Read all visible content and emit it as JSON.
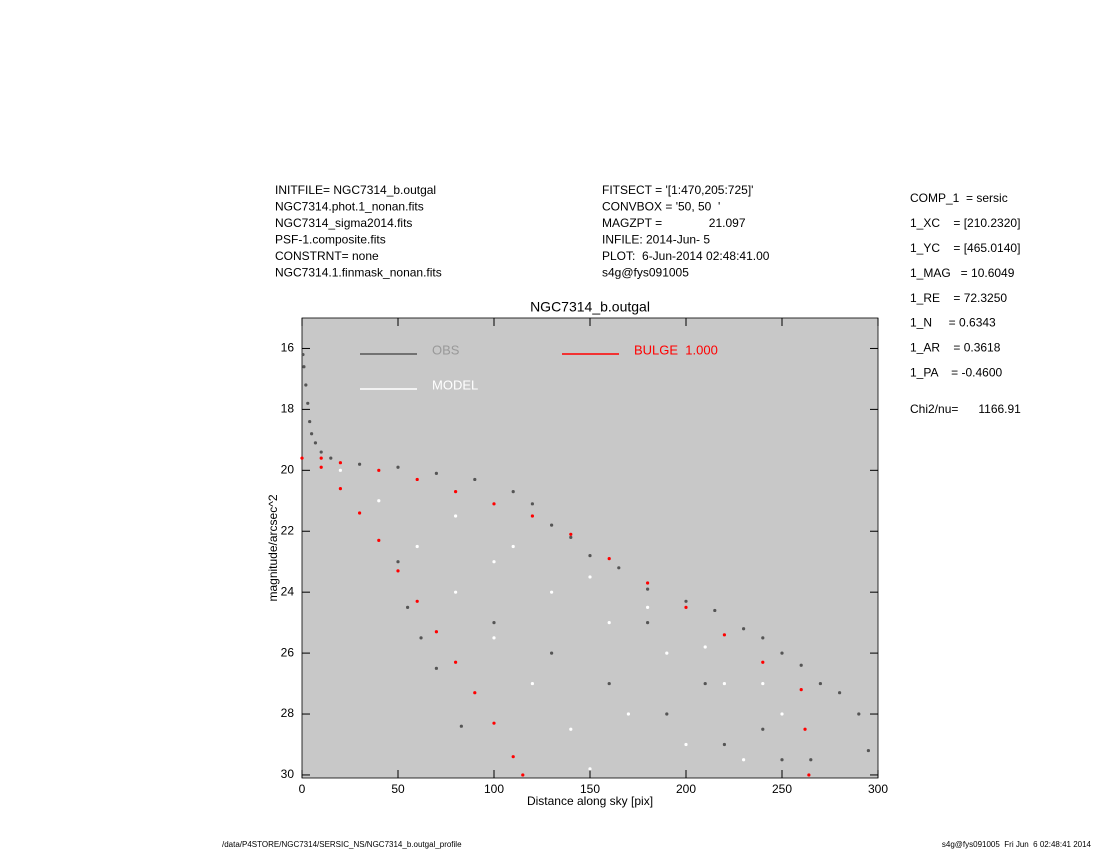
{
  "header": {
    "left": [
      "INITFILE= NGC7314_b.outgal",
      "NGC7314.phot.1_nonan.fits",
      "NGC7314_sigma2014.fits",
      "PSF-1.composite.fits",
      "CONSTRNT= none",
      "NGC7314.1.finmask_nonan.fits"
    ],
    "middle": [
      "FITSECT = '[1:470,205:725]'",
      "CONVBOX = '50, 50  '",
      "MAGZPT =              21.097",
      "INFILE: 2014-Jun- 5",
      "PLOT:  6-Jun-2014 02:48:41.00",
      "s4g@fys091005"
    ]
  },
  "parameters": [
    "COMP_1  = sersic",
    "1_XC    = [210.2320]",
    "1_YC    = [465.0140]",
    "1_MAG   = 10.6049",
    "1_RE    = 72.3250",
    "1_N     = 0.6343",
    "1_AR    = 0.3618",
    "1_PA    = -0.4600"
  ],
  "chi2": "Chi2/nu=      1166.91",
  "footer": {
    "left": "/data/P4STORE/NGC7314/SERSIC_NS/NGC7314_b.outgal_profile",
    "right": "s4g@fys091005  Fri Jun  6 02:48:41 2014"
  },
  "chart_data": {
    "type": "scatter",
    "title": "NGC7314_b.outgal",
    "xlabel": "Distance along sky [pix]",
    "ylabel": "magnitude/arcsec^2",
    "xlim": [
      0,
      300
    ],
    "ylim": [
      30.1,
      15
    ],
    "xticks": [
      0,
      50,
      100,
      150,
      200,
      250,
      300
    ],
    "yticks": [
      16,
      18,
      20,
      22,
      24,
      26,
      28,
      30
    ],
    "background": "#c8c8c8",
    "series": [
      {
        "name": "OBS",
        "color": "#555555",
        "x": [
          0.5,
          1,
          2,
          3,
          4,
          5,
          7,
          10,
          15,
          30,
          50,
          70,
          90,
          110,
          120,
          130,
          140,
          150,
          165,
          180,
          200,
          215,
          230,
          240,
          250,
          260,
          270,
          280,
          290,
          295,
          50,
          55,
          62,
          70,
          83,
          100,
          130,
          160,
          190,
          220,
          250,
          180,
          210,
          240,
          265
        ],
        "y": [
          16.2,
          16.6,
          17.2,
          17.8,
          18.4,
          18.8,
          19.1,
          19.4,
          19.6,
          19.8,
          19.9,
          20.1,
          20.3,
          20.7,
          21.1,
          21.8,
          22.2,
          22.8,
          23.2,
          23.9,
          24.3,
          24.6,
          25.2,
          25.5,
          26.0,
          26.4,
          27.0,
          27.3,
          28.0,
          29.2,
          23.0,
          24.5,
          25.5,
          26.5,
          28.4,
          25.0,
          26.0,
          27.0,
          28.0,
          29.0,
          29.5,
          25.0,
          27.0,
          28.5,
          29.5
        ]
      },
      {
        "name": "MODEL",
        "color": "#ffffff",
        "x": [
          20,
          40,
          60,
          80,
          100,
          120,
          140,
          150,
          100,
          130,
          160,
          190,
          220,
          250,
          170,
          200,
          230,
          80,
          110,
          150,
          180,
          210,
          240
        ],
        "y": [
          20.0,
          21.0,
          22.5,
          24.0,
          25.5,
          27.0,
          28.5,
          29.8,
          23.0,
          24.0,
          25.0,
          26.0,
          27.0,
          28.0,
          28.0,
          29.0,
          29.5,
          21.5,
          22.5,
          23.5,
          24.5,
          25.8,
          27.0
        ]
      },
      {
        "name": "BULGE  1.000",
        "color": "#ff0000",
        "x": [
          0,
          10,
          20,
          40,
          60,
          80,
          100,
          120,
          140,
          160,
          180,
          200,
          220,
          240,
          260,
          262,
          264,
          10,
          20,
          30,
          40,
          50,
          60,
          70,
          80,
          90,
          100,
          110,
          115
        ],
        "y": [
          19.6,
          19.6,
          19.75,
          20.0,
          20.3,
          20.7,
          21.1,
          21.5,
          22.1,
          22.9,
          23.7,
          24.5,
          25.4,
          26.3,
          27.2,
          28.5,
          30.0,
          19.9,
          20.6,
          21.4,
          22.3,
          23.3,
          24.3,
          25.3,
          26.3,
          27.3,
          28.3,
          29.4,
          30.0
        ]
      }
    ]
  }
}
